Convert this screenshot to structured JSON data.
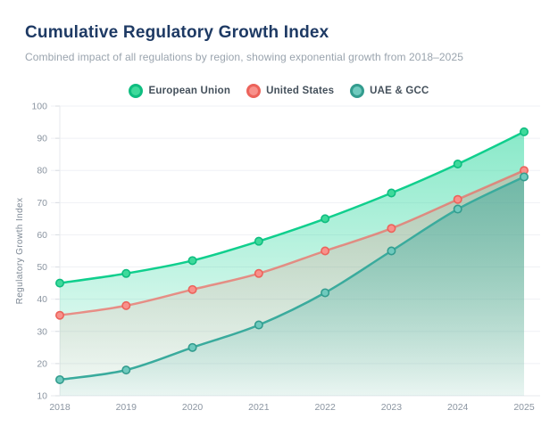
{
  "header": {
    "title": "Cumulative Regulatory Growth Index",
    "subtitle": "Combined impact of all regulations by region, showing exponential growth from 2018–2025"
  },
  "colors": {
    "background": "#ffffff",
    "title_text": "#1e3a64",
    "subtitle_text": "#9aa4ae",
    "legend_text": "#44505b",
    "axis_text": "#8b95a1",
    "gridline": "#eff1f5",
    "axis_line": "#e7eaee"
  },
  "chart_data": {
    "type": "area",
    "title": "Cumulative Regulatory Growth Index",
    "xlabel": "",
    "ylabel": "Regulatory Growth Index",
    "x": [
      "2018",
      "2019",
      "2020",
      "2021",
      "2022",
      "2023",
      "2024",
      "2025"
    ],
    "ylim": [
      10,
      100
    ],
    "ytick_step": 10,
    "grid": true,
    "legend_position": "top-center",
    "series": [
      {
        "name": "European Union",
        "values": [
          45,
          48,
          52,
          58,
          65,
          73,
          82,
          92
        ],
        "line_color": "#10cf8d",
        "line_opacity": 1,
        "marker_fill": "#3eda9b",
        "marker_stroke": "#0fbd80",
        "fill_color": "#14d393",
        "fill_opacity_top": 0.5,
        "fill_opacity_bottom": 0.04
      },
      {
        "name": "United States",
        "values": [
          35,
          38,
          43,
          48,
          55,
          62,
          71,
          80
        ],
        "line_color": "#ee6a62",
        "line_opacity": 0.72,
        "marker_fill": "#f8918b",
        "marker_stroke": "#ec635b",
        "fill_color": "#ee6a62",
        "fill_opacity_top": 0.28,
        "fill_opacity_bottom": 0.02
      },
      {
        "name": "UAE & GCC",
        "values": [
          15,
          18,
          25,
          32,
          42,
          55,
          68,
          78
        ],
        "line_color": "#3aab9d",
        "line_opacity": 1,
        "marker_fill": "#6fcabe",
        "marker_stroke": "#339c8e",
        "fill_color": "#3aab9d",
        "fill_opacity_top": 0.55,
        "fill_opacity_bottom": 0.06
      }
    ]
  }
}
